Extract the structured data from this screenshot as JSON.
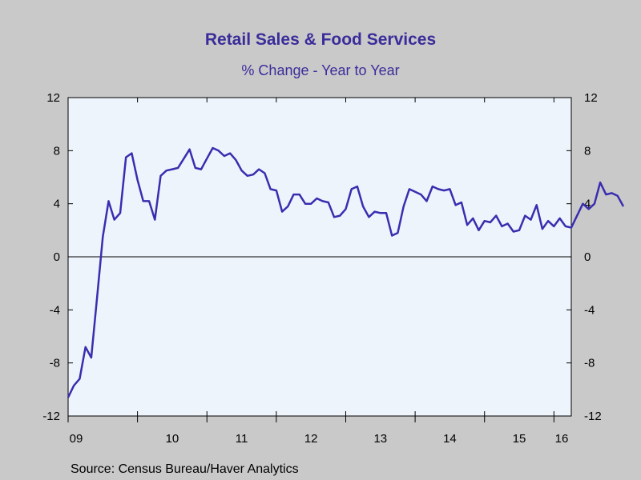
{
  "chart_data": {
    "type": "line",
    "title": "Retail Sales & Food Services",
    "subtitle": "% Change - Year to Year",
    "source": "Source:  Census Bureau/Haver Analytics",
    "xlabel": "",
    "ylabel": "",
    "ylim": [
      -12,
      12
    ],
    "xlim": [
      2009.0,
      2016.25
    ],
    "yticks": [
      12,
      8,
      4,
      0,
      -4,
      -8,
      -12
    ],
    "xtick_labels": [
      {
        "label": "09",
        "year": 2009
      },
      {
        "label": "10",
        "year": 2010
      },
      {
        "label": "11",
        "year": 2011
      },
      {
        "label": "12",
        "year": 2012
      },
      {
        "label": "13",
        "year": 2013
      },
      {
        "label": "14",
        "year": 2014
      },
      {
        "label": "15",
        "year": 2015
      },
      {
        "label": "16",
        "year": 2016
      }
    ],
    "grid": false,
    "zero_line": true,
    "frequency": "monthly",
    "start": "2009-01",
    "series": [
      {
        "color": "#3a2db0",
        "values": [
          -10.6,
          -9.7,
          -9.2,
          -6.8,
          -7.6,
          -3.1,
          1.5,
          4.2,
          2.8,
          3.3,
          7.5,
          7.8,
          5.8,
          4.2,
          4.2,
          2.8,
          6.1,
          6.5,
          6.6,
          6.7,
          7.4,
          8.1,
          6.7,
          6.6,
          7.4,
          8.2,
          8.0,
          7.6,
          7.8,
          7.3,
          6.5,
          6.1,
          6.2,
          6.6,
          6.3,
          5.1,
          5.0,
          3.4,
          3.8,
          4.7,
          4.7,
          4.0,
          4.0,
          4.4,
          4.2,
          4.1,
          3.0,
          3.1,
          3.6,
          5.1,
          5.3,
          3.8,
          3.0,
          3.4,
          3.3,
          3.3,
          1.6,
          1.8,
          3.8,
          5.1,
          4.9,
          4.7,
          4.2,
          5.3,
          5.1,
          5.0,
          5.1,
          3.9,
          4.1,
          2.4,
          2.9,
          2.0,
          2.7,
          2.6,
          3.1,
          2.3,
          2.5,
          1.9,
          2.0,
          3.1,
          2.8,
          3.9,
          2.1,
          2.7,
          2.3,
          2.9,
          2.3,
          2.2,
          3.1,
          4.0,
          3.6,
          4.0,
          5.6,
          4.7,
          4.8,
          4.6,
          3.8
        ]
      }
    ]
  }
}
